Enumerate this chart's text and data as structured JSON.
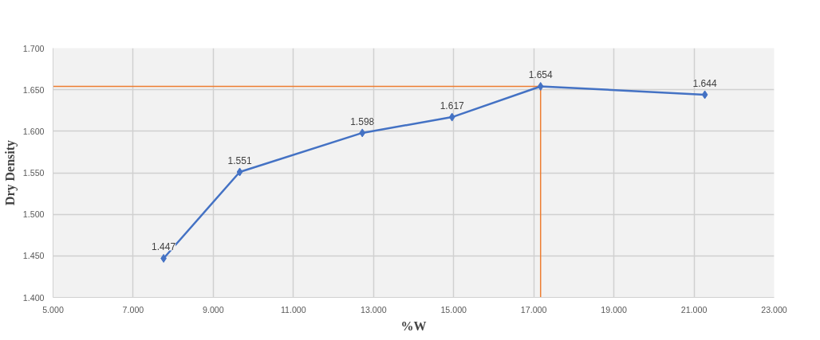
{
  "chart_data": {
    "type": "line",
    "xlabel": "%W",
    "ylabel": "Dry Density",
    "x": [
      7.76,
      9.66,
      12.72,
      14.96,
      17.17,
      21.27
    ],
    "series": [
      {
        "color": "#4472c4",
        "values": [
          1.447,
          1.551,
          1.598,
          1.617,
          1.654,
          1.644
        ]
      }
    ],
    "data_labels": true,
    "marker": "diamond",
    "line_style": "solid",
    "grid": true,
    "xlim": [
      5,
      23
    ],
    "xticks": [
      {
        "value": 5,
        "label": "5.000"
      },
      {
        "value": 7,
        "label": "7.000"
      },
      {
        "value": 9,
        "label": "9.000"
      },
      {
        "value": 11,
        "label": "11.000"
      },
      {
        "value": 13,
        "label": "13.000"
      },
      {
        "value": 15,
        "label": "15.000"
      },
      {
        "value": 17,
        "label": "17.000"
      },
      {
        "value": 19,
        "label": "19.000"
      },
      {
        "value": 21,
        "label": "21.000"
      },
      {
        "value": 23,
        "label": "23.000"
      }
    ],
    "ylim": [
      1.4,
      1.7
    ],
    "yticks": [
      {
        "value": 1.4,
        "label": "1.400"
      },
      {
        "value": 1.45,
        "label": "1.450"
      },
      {
        "value": 1.5,
        "label": "1.500"
      },
      {
        "value": 1.55,
        "label": "1.550"
      },
      {
        "value": 1.6,
        "label": "1.600"
      },
      {
        "value": 1.65,
        "label": "1.650"
      },
      {
        "value": 1.7,
        "label": "1.700"
      }
    ],
    "ref_lines": [
      {
        "axis": "y",
        "value": 1.654,
        "color": "#ed7d31"
      },
      {
        "axis": "x",
        "value": 17.17,
        "color": "#ed7d31"
      }
    ]
  }
}
